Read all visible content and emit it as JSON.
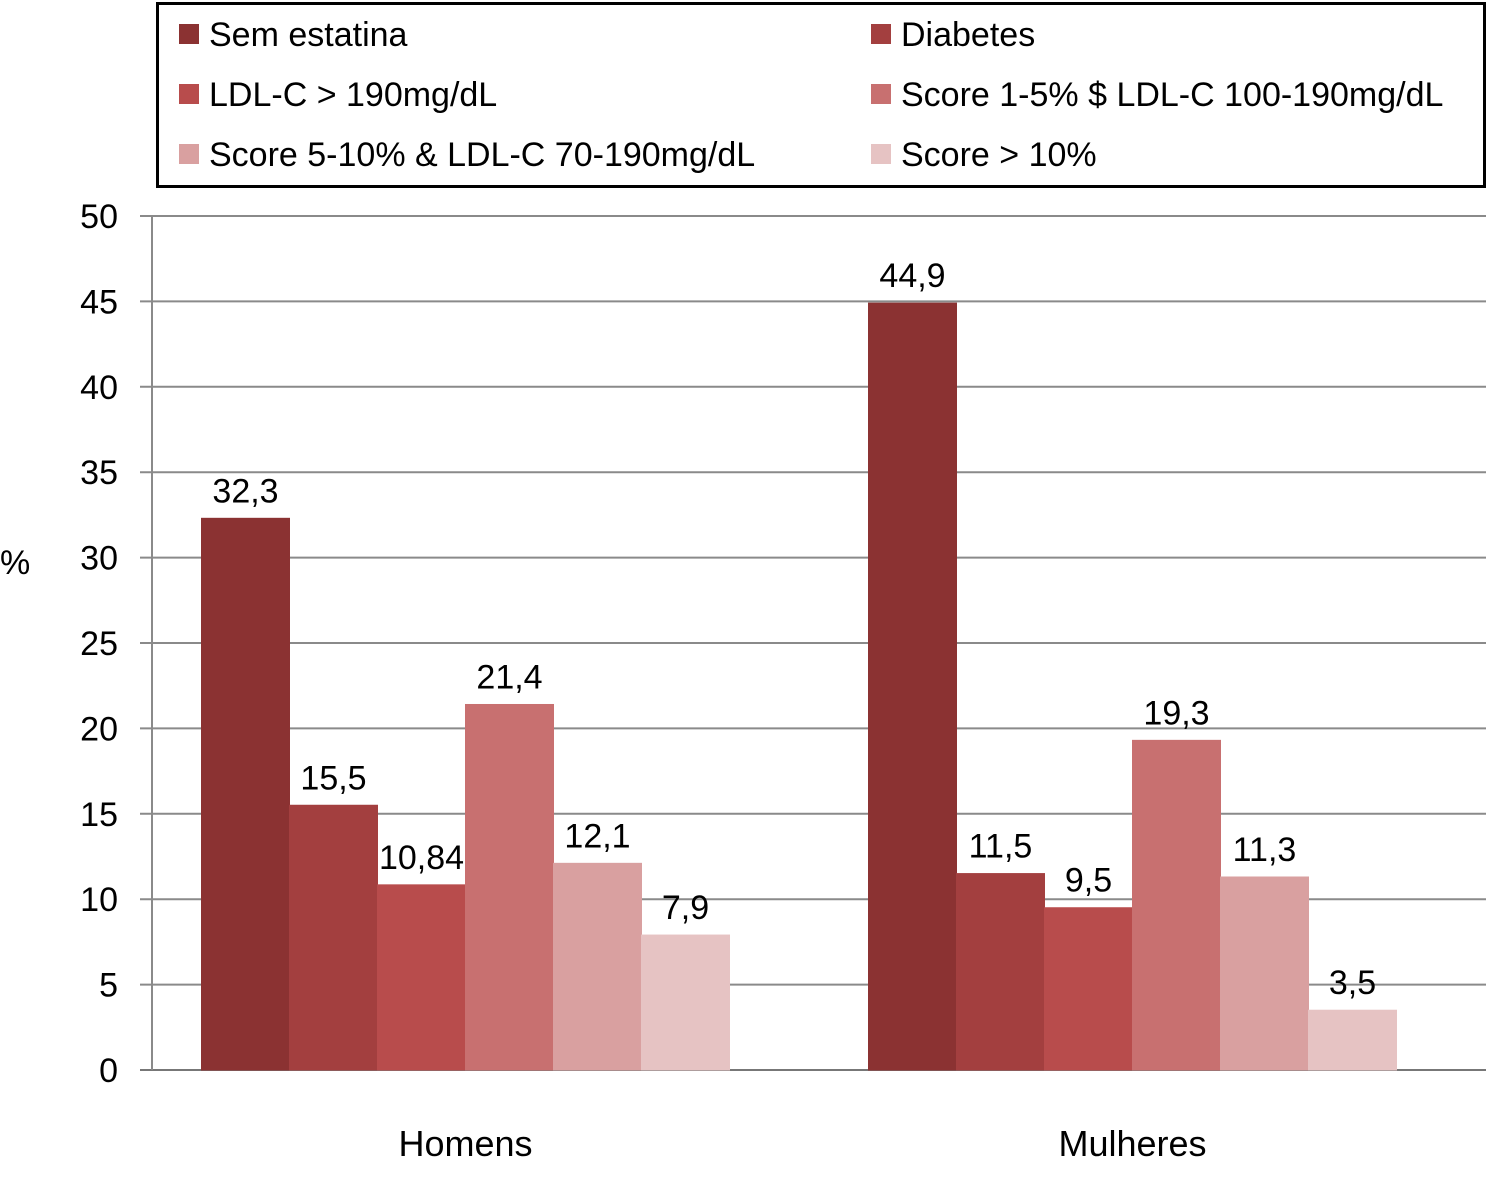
{
  "chart_data": {
    "type": "bar",
    "title": "",
    "xlabel": "",
    "ylabel": "%",
    "ylim": [
      0,
      50
    ],
    "yticks": [
      0,
      5,
      10,
      15,
      20,
      25,
      30,
      35,
      40,
      45,
      50
    ],
    "grid": true,
    "legend_position": "top",
    "categories": [
      "Homens",
      "Mulheres"
    ],
    "series": [
      {
        "name": "Sem estatina",
        "color": "#8b3232",
        "values": [
          32.3,
          44.9
        ],
        "labels": [
          "32,3",
          "44,9"
        ]
      },
      {
        "name": "Diabetes",
        "color": "#a33f3f",
        "values": [
          15.5,
          11.5
        ],
        "labels": [
          "15,5",
          "11,5"
        ]
      },
      {
        "name": "LDL-C > 190mg/dL",
        "color": "#b84c4c",
        "values": [
          10.84,
          9.5
        ],
        "labels": [
          "10,84",
          "9,5"
        ]
      },
      {
        "name": "Score 1-5% $ LDL-C 100-190mg/dL",
        "color": "#c87070",
        "values": [
          21.4,
          19.3
        ],
        "labels": [
          "21,4",
          "19,3"
        ]
      },
      {
        "name": "Score 5-10% & LDL-C 70-190mg/dL",
        "color": "#d9a0a0",
        "values": [
          12.1,
          11.3
        ],
        "labels": [
          "12,1",
          "11,3"
        ]
      },
      {
        "name": "Score > 10%",
        "color": "#e6c3c3",
        "values": [
          7.9,
          3.5
        ],
        "labels": [
          "7,9",
          "3,5"
        ]
      }
    ]
  }
}
